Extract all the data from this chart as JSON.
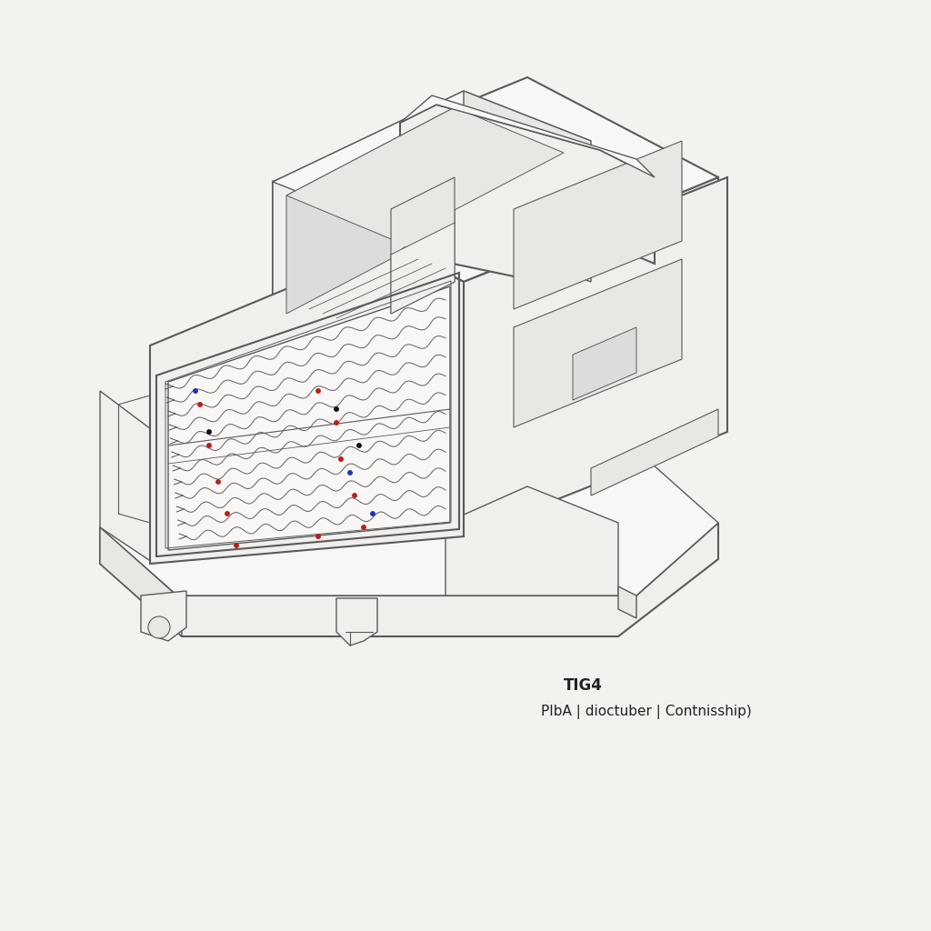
{
  "title_line1": "TIG4",
  "title_line2": "PIbA | dioctuber | Contnisship)",
  "background_color": "#f2f2ef",
  "line_color": "#5a5a5a",
  "face_color_light": "#f0efec",
  "face_color_mid": "#e8e7e3",
  "face_color_dark": "#dddcda",
  "face_white": "#f8f7f5",
  "red_color": "#bb1c1c",
  "blue_color": "#1c35bb",
  "black_color": "#111111",
  "text_color": "#222222",
  "title_fontsize": 12,
  "subtitle_fontsize": 11,
  "lw": 1.0,
  "lw_thick": 1.5
}
